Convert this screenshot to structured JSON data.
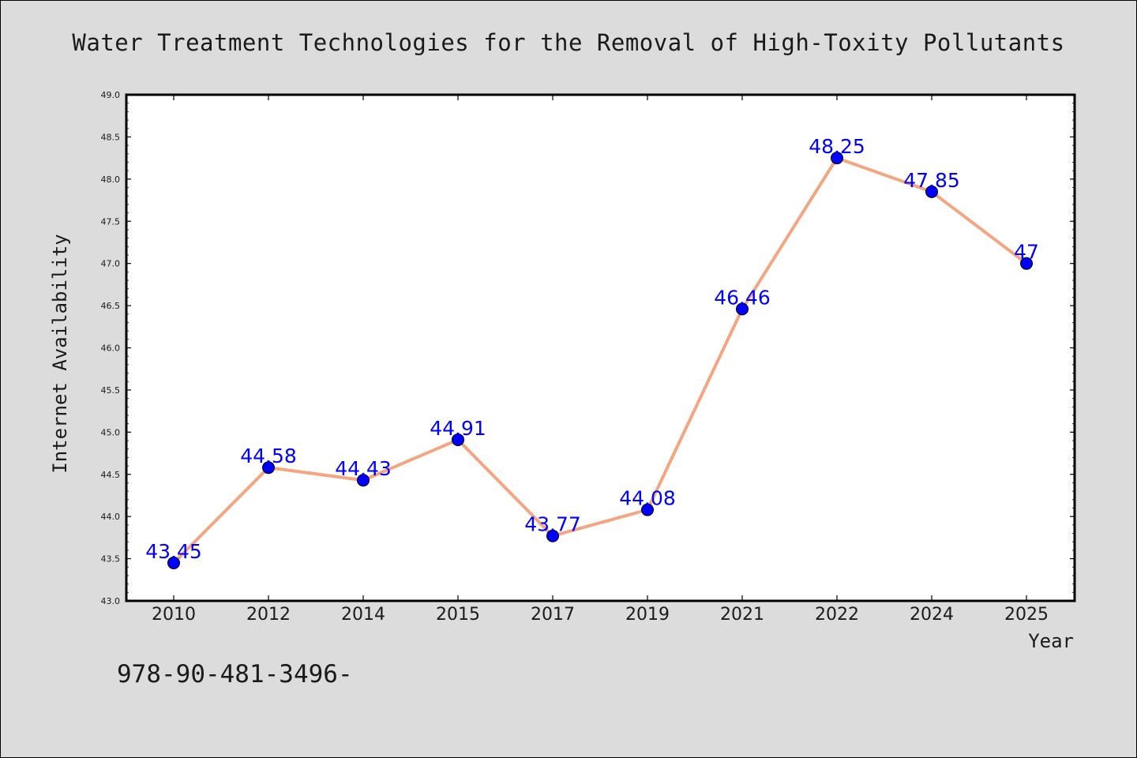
{
  "chart_data": {
    "type": "line",
    "title": "Water Treatment Technologies for the Removal of High-Toxity Pollutants",
    "xlabel": "Year",
    "ylabel": "Internet Availability",
    "categories": [
      "2010",
      "2012",
      "2014",
      "2015",
      "2017",
      "2019",
      "2021",
      "2022",
      "2024",
      "2025"
    ],
    "values": [
      43.45,
      44.58,
      44.43,
      44.91,
      43.77,
      44.08,
      46.46,
      48.25,
      47.85,
      47
    ],
    "data_labels": [
      "43.45",
      "44.58",
      "44.43",
      "44.91",
      "43.77",
      "44.08",
      "46.46",
      "48.25",
      "47.85",
      "47"
    ],
    "ylim": [
      43.0,
      49.0
    ],
    "yticks": [
      "43.0",
      "43.5",
      "44.0",
      "44.5",
      "45.0",
      "45.5",
      "46.0",
      "46.5",
      "47.0",
      "47.5",
      "48.0",
      "48.5",
      "49.0"
    ],
    "grid": false,
    "line_color": "#f4a582",
    "marker_color": "#0000ff",
    "label_color": "#0000ff"
  },
  "footer": {
    "text": "978-90-481-3496-"
  }
}
